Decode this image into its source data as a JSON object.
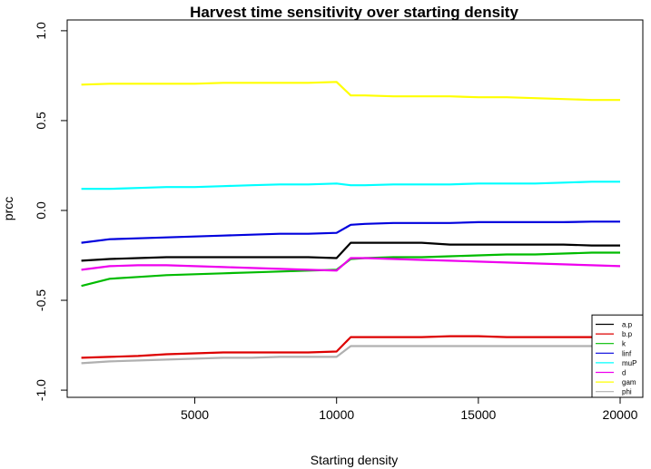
{
  "chart_data": {
    "type": "line",
    "title": "Harvest time sensitivity over starting density",
    "xlabel": "Starting density",
    "ylabel": "prcc",
    "xlim": [
      500,
      20800
    ],
    "ylim": [
      -1.04,
      1.06
    ],
    "xticks": [
      5000,
      10000,
      15000,
      20000
    ],
    "yticks": [
      -1.0,
      -0.5,
      0.0,
      0.5,
      1.0
    ],
    "ytick_labels": [
      "-1.0",
      "-0.5",
      "0.0",
      "0.5",
      "1.0"
    ],
    "legend_position": "bottom-right",
    "x": [
      1000,
      2000,
      3000,
      4000,
      5000,
      6000,
      7000,
      8000,
      9000,
      10000,
      10500,
      11000,
      12000,
      13000,
      14000,
      15000,
      16000,
      17000,
      18000,
      19000,
      20000
    ],
    "series": [
      {
        "name": "a.p",
        "color": "#000000",
        "values": [
          -0.28,
          -0.27,
          -0.265,
          -0.26,
          -0.26,
          -0.26,
          -0.26,
          -0.26,
          -0.26,
          -0.265,
          -0.18,
          -0.18,
          -0.18,
          -0.18,
          -0.19,
          -0.19,
          -0.19,
          -0.19,
          -0.19,
          -0.195,
          -0.195
        ]
      },
      {
        "name": "b.p",
        "color": "#dd0000",
        "values": [
          -0.82,
          -0.815,
          -0.81,
          -0.8,
          -0.795,
          -0.79,
          -0.79,
          -0.79,
          -0.79,
          -0.785,
          -0.705,
          -0.705,
          -0.705,
          -0.705,
          -0.7,
          -0.7,
          -0.705,
          -0.705,
          -0.705,
          -0.705,
          -0.705
        ]
      },
      {
        "name": "k",
        "color": "#00bb00",
        "values": [
          -0.42,
          -0.38,
          -0.37,
          -0.36,
          -0.355,
          -0.35,
          -0.345,
          -0.34,
          -0.335,
          -0.33,
          -0.27,
          -0.265,
          -0.26,
          -0.26,
          -0.255,
          -0.25,
          -0.245,
          -0.245,
          -0.24,
          -0.235,
          -0.235
        ]
      },
      {
        "name": "linf",
        "color": "#0000dd",
        "values": [
          -0.18,
          -0.16,
          -0.155,
          -0.15,
          -0.145,
          -0.14,
          -0.135,
          -0.13,
          -0.13,
          -0.125,
          -0.08,
          -0.075,
          -0.07,
          -0.07,
          -0.07,
          -0.065,
          -0.065,
          -0.065,
          -0.065,
          -0.062,
          -0.062
        ]
      },
      {
        "name": "muP",
        "color": "#00ffff",
        "values": [
          0.12,
          0.12,
          0.125,
          0.13,
          0.13,
          0.135,
          0.14,
          0.145,
          0.145,
          0.15,
          0.14,
          0.14,
          0.145,
          0.145,
          0.145,
          0.15,
          0.15,
          0.15,
          0.155,
          0.16,
          0.16
        ]
      },
      {
        "name": "d",
        "color": "#ee00ee",
        "values": [
          -0.33,
          -0.31,
          -0.305,
          -0.305,
          -0.31,
          -0.315,
          -0.32,
          -0.325,
          -0.33,
          -0.335,
          -0.265,
          -0.265,
          -0.27,
          -0.275,
          -0.28,
          -0.285,
          -0.29,
          -0.295,
          -0.3,
          -0.305,
          -0.31
        ]
      },
      {
        "name": "gam",
        "color": "#ffff00",
        "values": [
          0.7,
          0.705,
          0.705,
          0.705,
          0.705,
          0.71,
          0.71,
          0.71,
          0.71,
          0.715,
          0.64,
          0.64,
          0.635,
          0.635,
          0.635,
          0.63,
          0.63,
          0.625,
          0.62,
          0.615,
          0.615
        ]
      },
      {
        "name": "phi",
        "color": "#b0b0b0",
        "values": [
          -0.85,
          -0.84,
          -0.835,
          -0.83,
          -0.825,
          -0.82,
          -0.82,
          -0.815,
          -0.815,
          -0.815,
          -0.755,
          -0.755,
          -0.755,
          -0.755,
          -0.755,
          -0.755,
          -0.755,
          -0.755,
          -0.755,
          -0.755,
          -0.755
        ]
      }
    ]
  }
}
